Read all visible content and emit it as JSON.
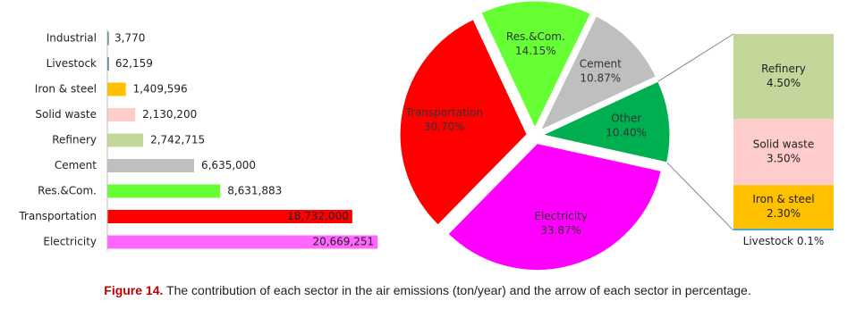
{
  "chart_data": [
    {
      "type": "bar",
      "orientation": "horizontal",
      "categories": [
        "Industrial",
        "Livestock",
        "Iron & steel",
        "Solid waste",
        "Refinery",
        "Cement",
        "Res.&Com.",
        "Transportation",
        "Electricity"
      ],
      "values": [
        3770,
        62159,
        1409596,
        2130200,
        2742715,
        6635000,
        8631883,
        18732000,
        20669251
      ],
      "value_labels": [
        "3,770",
        "62,159",
        "1,409,596",
        "2,130,200",
        "2,742,715",
        "6,635,000",
        "8,631,883",
        "18,732,000",
        "20,669,251"
      ],
      "colors": [
        "#1f6f6f",
        "#1f4e79",
        "#ffc000",
        "#ffcccc",
        "#c4d79b",
        "#bfbfbf",
        "#66ff33",
        "#ff0000",
        "#ff66ff"
      ],
      "xlim": [
        0,
        21000000
      ]
    },
    {
      "type": "pie",
      "categories": [
        "Res.&Com.",
        "Cement",
        "Other",
        "Electricity",
        "Transportation"
      ],
      "values": [
        14.15,
        10.87,
        10.4,
        33.87,
        30.7
      ],
      "value_labels": [
        "14.15%",
        "10.87%",
        "10.40%",
        "33.87%",
        "30.70%"
      ],
      "colors": [
        "#66ff33",
        "#bfbfbf",
        "#00b050",
        "#ff00ff",
        "#ff0000"
      ],
      "breakout": {
        "of": "Other",
        "categories": [
          "Refinery",
          "Solid waste",
          "Iron & steel",
          "Livestock"
        ],
        "values": [
          4.5,
          3.5,
          2.3,
          0.1
        ],
        "value_labels": [
          "4.50%",
          "3.50%",
          "2.30%",
          "0.1%"
        ],
        "colors": [
          "#c4d79b",
          "#ffcccc",
          "#ffc000",
          "#4bacc6"
        ]
      }
    }
  ],
  "caption": {
    "label": "Figure 14.",
    "text": "The contribution of each sector in the air emissions (ton/year) and the arrow of each sector in percentage."
  }
}
